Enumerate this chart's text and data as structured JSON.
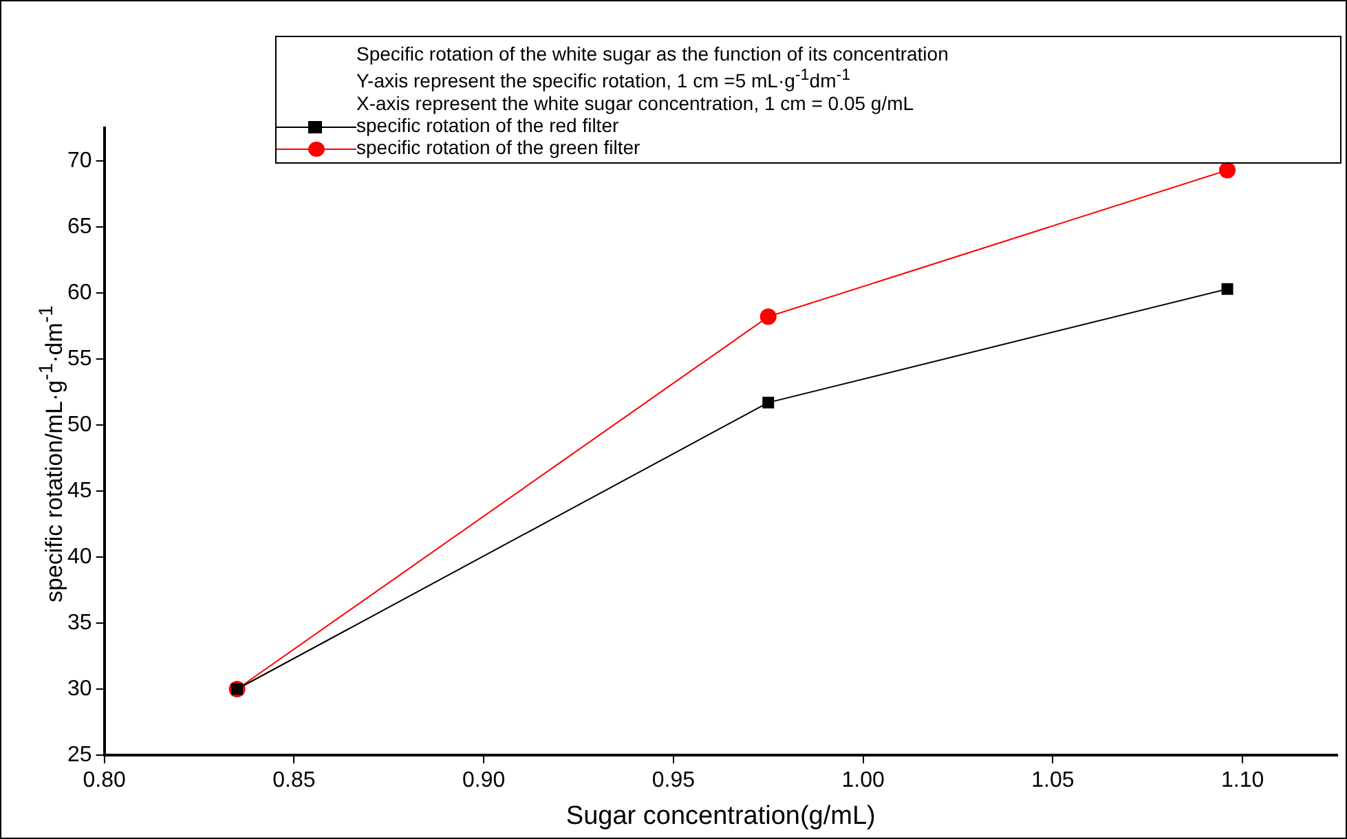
{
  "chart_data": {
    "type": "line",
    "xlabel": "Sugar concentration(g/mL)",
    "ylabel": "specific rotation/mL·g$^{-1}$·dm$^{-1}$",
    "annotations": [
      "Specific rotation of the white sugar as the function of its concentration",
      "Y-axis represent the specific rotation, 1 cm =5 mL·g$^{-1}$dm$^{-1}$",
      "X-axis represent the white sugar concentration, 1 cm = 0.05 g/mL"
    ],
    "x": [
      0.835,
      0.975,
      1.096
    ],
    "series": [
      {
        "name": "specific rotation of the red filter",
        "color": "#000000",
        "marker": "square",
        "values": [
          30,
          51.7,
          60.3
        ]
      },
      {
        "name": "specific rotation of the green filter",
        "color": "#ff0000",
        "marker": "circle",
        "values": [
          30,
          58.2,
          69.3
        ]
      }
    ],
    "xlim": [
      0.8,
      1.125
    ],
    "xticks": [
      {
        "value": 0.8,
        "label": "0.80"
      },
      {
        "value": 0.85,
        "label": "0.85"
      },
      {
        "value": 0.9,
        "label": "0.90"
      },
      {
        "value": 0.95,
        "label": "0.95"
      },
      {
        "value": 1.0,
        "label": "1.00"
      },
      {
        "value": 1.05,
        "label": "1.05"
      },
      {
        "value": 1.1,
        "label": "1.10"
      }
    ],
    "ylim": [
      25,
      72.5
    ],
    "yticks": [
      25,
      30,
      35,
      40,
      45,
      50,
      55,
      60,
      65,
      70
    ],
    "grid": false,
    "legend": "top",
    "line_style": "solid"
  }
}
